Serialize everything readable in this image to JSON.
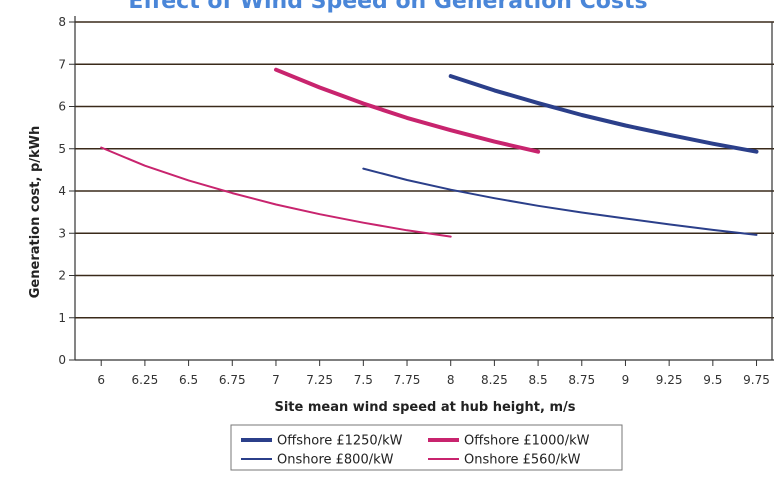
{
  "chart_data": {
    "type": "line",
    "title": "Effect of Wind Speed on Generation Costs",
    "xlabel": "Site mean wind speed at hub height, m/s",
    "ylabel": "Generation cost, p/kWh",
    "xlim": [
      5.85,
      9.85
    ],
    "ylim": [
      0,
      8
    ],
    "x_ticks": [
      "6",
      "6.25",
      "6.5",
      "6.75",
      "7",
      "7.25",
      "7.5",
      "7.75",
      "8",
      "8.25",
      "8.5",
      "8.75",
      "9",
      "9.25",
      "9.5",
      "9.75"
    ],
    "y_ticks": [
      "0",
      "1",
      "2",
      "3",
      "4",
      "5",
      "6",
      "7",
      "8"
    ],
    "grid": true,
    "legend_position": "bottom",
    "series": [
      {
        "name": "Offshore £1250/kW",
        "color": "#2b3f8a",
        "thick": true,
        "points": [
          [
            8,
            6.72
          ],
          [
            8.25,
            6.38
          ],
          [
            8.5,
            6.08
          ],
          [
            8.75,
            5.8
          ],
          [
            9,
            5.55
          ],
          [
            9.25,
            5.33
          ],
          [
            9.5,
            5.12
          ],
          [
            9.75,
            4.93
          ]
        ]
      },
      {
        "name": "Offshore £1000/kW",
        "color": "#c8246e",
        "thick": true,
        "points": [
          [
            7,
            6.87
          ],
          [
            7.25,
            6.45
          ],
          [
            7.5,
            6.07
          ],
          [
            7.75,
            5.73
          ],
          [
            8,
            5.44
          ],
          [
            8.25,
            5.17
          ],
          [
            8.5,
            4.93
          ]
        ]
      },
      {
        "name": "Onshore £800/kW",
        "color": "#2b3f8a",
        "thick": false,
        "points": [
          [
            7.5,
            4.53
          ],
          [
            7.75,
            4.26
          ],
          [
            8,
            4.03
          ],
          [
            8.25,
            3.83
          ],
          [
            8.5,
            3.65
          ],
          [
            8.75,
            3.49
          ],
          [
            9,
            3.35
          ],
          [
            9.25,
            3.21
          ],
          [
            9.5,
            3.08
          ],
          [
            9.75,
            2.96
          ]
        ]
      },
      {
        "name": "Onshore £560/kW",
        "color": "#c8246e",
        "thick": false,
        "points": [
          [
            6,
            5.03
          ],
          [
            6.25,
            4.6
          ],
          [
            6.5,
            4.25
          ],
          [
            6.75,
            3.95
          ],
          [
            7,
            3.68
          ],
          [
            7.25,
            3.45
          ],
          [
            7.5,
            3.25
          ],
          [
            7.75,
            3.07
          ],
          [
            8,
            2.92
          ]
        ]
      }
    ]
  }
}
